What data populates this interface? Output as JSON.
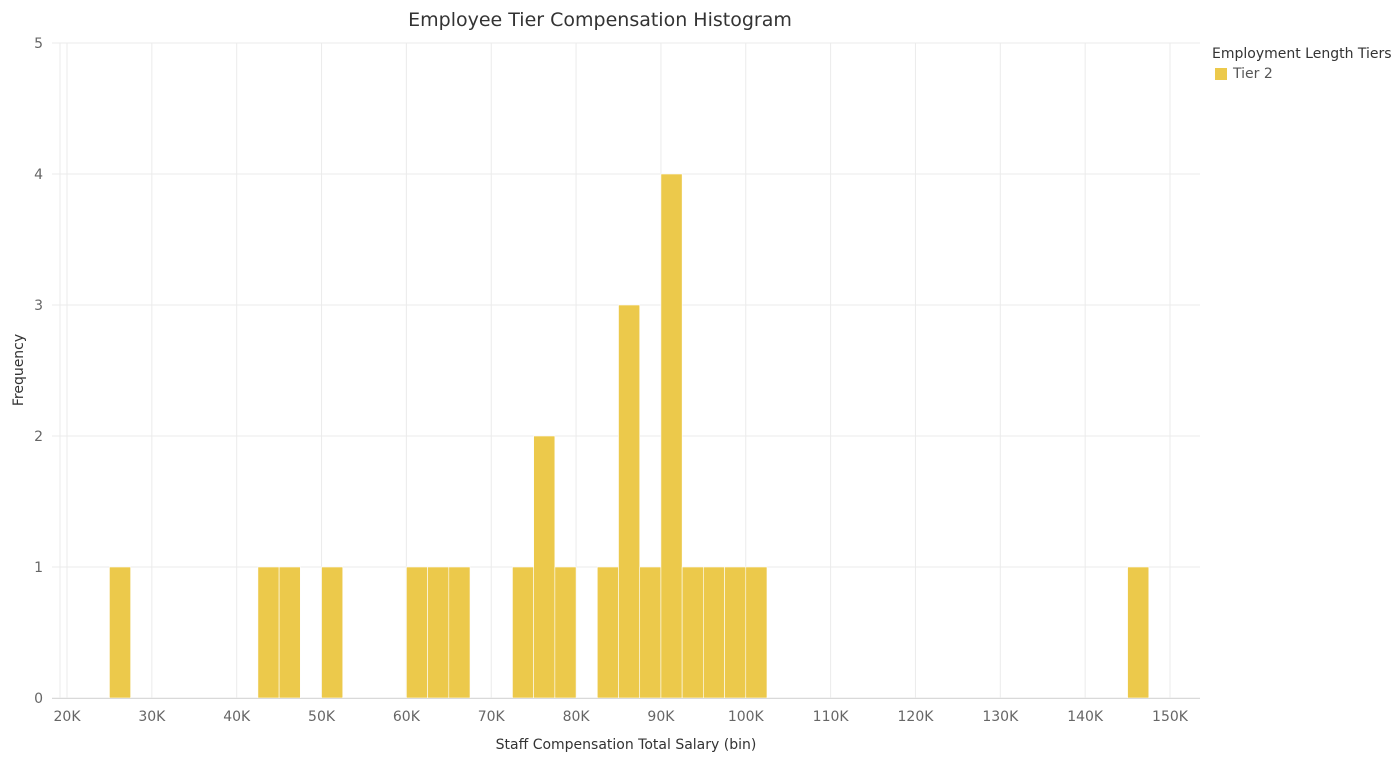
{
  "chart_data": {
    "type": "bar",
    "title": "Employee Tier Compensation Histogram",
    "xlabel": "Staff Compensation Total Salary (bin)",
    "ylabel": "Frequency",
    "xlim": [
      20000,
      152500
    ],
    "ylim": [
      0,
      5
    ],
    "bin_width": 2500,
    "grid": true,
    "legend_placement": "top-right",
    "x_ticks": [
      20000,
      30000,
      40000,
      50000,
      60000,
      70000,
      80000,
      90000,
      100000,
      110000,
      120000,
      130000,
      140000,
      150000
    ],
    "x_tick_labels": [
      "20K",
      "30K",
      "40K",
      "50K",
      "60K",
      "70K",
      "80K",
      "90K",
      "100K",
      "110K",
      "120K",
      "130K",
      "140K",
      "150K"
    ],
    "y_ticks": [
      0,
      1,
      2,
      3,
      4,
      5
    ],
    "y_tick_labels": [
      "0",
      "1",
      "2",
      "3",
      "4",
      "5"
    ],
    "legend_title": "Employment Length Tiers",
    "series": [
      {
        "name": "Tier 2",
        "color": "#ecc94b",
        "bins": [
          {
            "x": 25000,
            "count": 1
          },
          {
            "x": 42500,
            "count": 1
          },
          {
            "x": 45000,
            "count": 1
          },
          {
            "x": 50000,
            "count": 1
          },
          {
            "x": 60000,
            "count": 1
          },
          {
            "x": 62500,
            "count": 1
          },
          {
            "x": 65000,
            "count": 1
          },
          {
            "x": 72500,
            "count": 1
          },
          {
            "x": 75000,
            "count": 2
          },
          {
            "x": 77500,
            "count": 1
          },
          {
            "x": 82500,
            "count": 1
          },
          {
            "x": 85000,
            "count": 3
          },
          {
            "x": 87500,
            "count": 1
          },
          {
            "x": 90000,
            "count": 4
          },
          {
            "x": 92500,
            "count": 1
          },
          {
            "x": 95000,
            "count": 1
          },
          {
            "x": 97500,
            "count": 1
          },
          {
            "x": 100000,
            "count": 1
          },
          {
            "x": 145000,
            "count": 1
          }
        ]
      }
    ]
  }
}
